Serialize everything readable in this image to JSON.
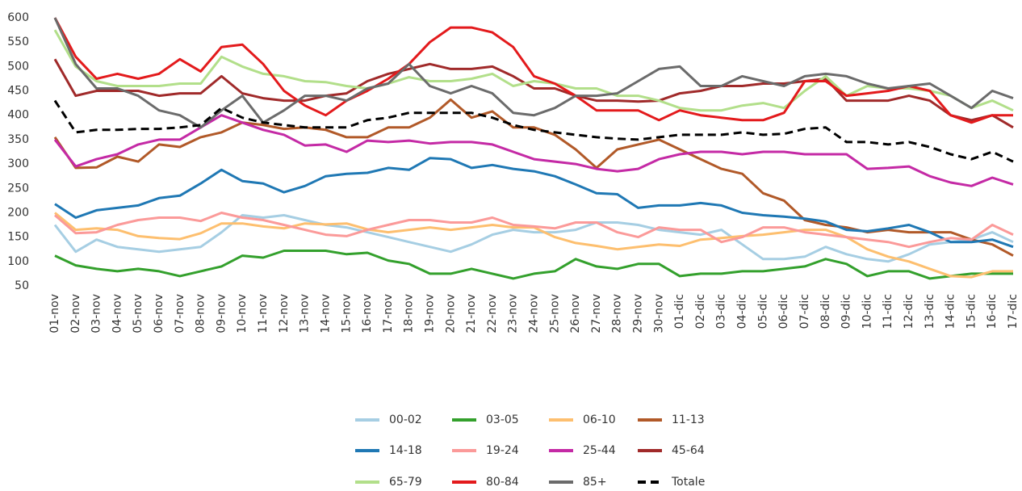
{
  "chart_data": {
    "type": "line",
    "categories": [
      "01-nov",
      "02-nov",
      "03-nov",
      "04-nov",
      "05-nov",
      "06-nov",
      "07-nov",
      "08-nov",
      "09-nov",
      "10-nov",
      "11-nov",
      "12-nov",
      "13-nov",
      "14-nov",
      "15-nov",
      "16-nov",
      "17-nov",
      "18-nov",
      "19-nov",
      "20-nov",
      "21-nov",
      "22-nov",
      "23-nov",
      "24-nov",
      "25-nov",
      "26-nov",
      "27-nov",
      "28-nov",
      "29-nov",
      "30-nov",
      "01-dic",
      "02-dic",
      "03-dic",
      "04-dic",
      "05-dic",
      "06-dic",
      "07-dic",
      "08-dic",
      "09-dic",
      "10-dic",
      "11-dic",
      "12-dic",
      "13-dic",
      "14-dic",
      "15-dic",
      "16-dic",
      "17-dic"
    ],
    "ylim": [
      50,
      600
    ],
    "yticks": [
      50,
      100,
      150,
      200,
      250,
      300,
      350,
      400,
      450,
      500,
      550,
      600
    ],
    "grid": false,
    "series": [
      {
        "name": "00-02",
        "color": "#a6cee3",
        "values": [
          175,
          120,
          145,
          130,
          125,
          120,
          125,
          130,
          160,
          195,
          190,
          195,
          185,
          175,
          170,
          160,
          150,
          140,
          130,
          120,
          135,
          155,
          165,
          160,
          160,
          165,
          180,
          180,
          175,
          165,
          160,
          155,
          165,
          135,
          105,
          105,
          110,
          130,
          115,
          105,
          100,
          115,
          135,
          140,
          145,
          160,
          140
        ]
      },
      {
        "name": "03-05",
        "color": "#33a02c",
        "values": [
          112,
          92,
          85,
          80,
          85,
          80,
          70,
          80,
          90,
          112,
          108,
          122,
          122,
          122,
          115,
          118,
          102,
          95,
          75,
          75,
          85,
          75,
          65,
          75,
          80,
          105,
          90,
          85,
          95,
          95,
          70,
          75,
          75,
          80,
          80,
          85,
          90,
          105,
          95,
          70,
          80,
          80,
          65,
          70,
          75,
          75,
          75
        ]
      },
      {
        "name": "06-10",
        "color": "#fdbf6f",
        "values": [
          200,
          165,
          168,
          165,
          152,
          148,
          146,
          158,
          178,
          178,
          172,
          168,
          178,
          176,
          178,
          166,
          160,
          165,
          170,
          165,
          170,
          175,
          170,
          170,
          150,
          138,
          132,
          125,
          130,
          135,
          132,
          145,
          148,
          152,
          155,
          160,
          165,
          165,
          150,
          125,
          110,
          100,
          85,
          70,
          68,
          80,
          80
        ]
      },
      {
        "name": "11-13",
        "color": "#b15928",
        "values": [
          355,
          292,
          293,
          315,
          305,
          340,
          335,
          355,
          365,
          385,
          380,
          372,
          375,
          370,
          355,
          355,
          375,
          375,
          395,
          432,
          395,
          408,
          375,
          375,
          360,
          330,
          292,
          330,
          340,
          350,
          330,
          310,
          290,
          280,
          240,
          225,
          185,
          175,
          170,
          160,
          165,
          160,
          160,
          160,
          145,
          135,
          112
        ]
      },
      {
        "name": "14-18",
        "color": "#1f78b4",
        "values": [
          218,
          190,
          205,
          210,
          215,
          230,
          235,
          260,
          288,
          265,
          260,
          242,
          255,
          275,
          280,
          282,
          292,
          288,
          312,
          310,
          292,
          298,
          290,
          285,
          275,
          258,
          240,
          238,
          210,
          215,
          215,
          220,
          215,
          200,
          195,
          192,
          188,
          182,
          165,
          162,
          168,
          175,
          160,
          140,
          140,
          145,
          130
        ]
      },
      {
        "name": "19-24",
        "color": "#fb9a99",
        "values": [
          195,
          158,
          160,
          175,
          185,
          190,
          190,
          183,
          200,
          190,
          185,
          175,
          165,
          155,
          152,
          165,
          175,
          185,
          185,
          180,
          180,
          190,
          175,
          172,
          168,
          180,
          180,
          160,
          150,
          170,
          165,
          165,
          140,
          150,
          170,
          170,
          160,
          155,
          150,
          145,
          140,
          130,
          140,
          148,
          145,
          175,
          155
        ]
      },
      {
        "name": "25-44",
        "color": "#c42aa5",
        "values": [
          350,
          295,
          310,
          320,
          340,
          350,
          350,
          375,
          400,
          385,
          370,
          360,
          338,
          340,
          325,
          348,
          345,
          348,
          342,
          345,
          345,
          340,
          325,
          310,
          305,
          300,
          290,
          285,
          290,
          310,
          320,
          325,
          325,
          320,
          325,
          325,
          320,
          320,
          320,
          290,
          292,
          295,
          275,
          262,
          255,
          272,
          258
        ]
      },
      {
        "name": "45-64",
        "color": "#a02a2a",
        "values": [
          515,
          440,
          450,
          450,
          450,
          440,
          445,
          445,
          480,
          445,
          435,
          430,
          430,
          440,
          445,
          470,
          485,
          495,
          505,
          495,
          495,
          500,
          480,
          455,
          455,
          440,
          430,
          430,
          428,
          430,
          445,
          450,
          460,
          460,
          465,
          465,
          470,
          475,
          430,
          430,
          430,
          440,
          430,
          400,
          390,
          400,
          375
        ]
      },
      {
        "name": "65-79",
        "color": "#b2df8a",
        "values": [
          575,
          500,
          470,
          460,
          460,
          460,
          465,
          465,
          520,
          500,
          485,
          480,
          470,
          468,
          460,
          455,
          465,
          478,
          470,
          470,
          475,
          485,
          460,
          470,
          465,
          455,
          455,
          440,
          440,
          430,
          415,
          410,
          410,
          420,
          425,
          415,
          450,
          480,
          440,
          460,
          455,
          455,
          450,
          440,
          415,
          430,
          410
        ]
      },
      {
        "name": "80-84",
        "color": "#e31a1c",
        "values": [
          600,
          520,
          475,
          485,
          475,
          485,
          515,
          490,
          540,
          545,
          505,
          450,
          420,
          400,
          430,
          450,
          475,
          505,
          550,
          580,
          580,
          570,
          540,
          480,
          465,
          440,
          410,
          410,
          410,
          390,
          410,
          400,
          395,
          390,
          390,
          405,
          470,
          470,
          440,
          445,
          450,
          460,
          450,
          400,
          385,
          400,
          400
        ]
      },
      {
        "name": "85+",
        "color": "#6b6b6b",
        "values": [
          600,
          505,
          455,
          455,
          440,
          410,
          400,
          375,
          410,
          440,
          385,
          410,
          440,
          440,
          430,
          455,
          465,
          505,
          460,
          445,
          460,
          445,
          405,
          400,
          415,
          440,
          440,
          445,
          470,
          495,
          500,
          460,
          460,
          480,
          470,
          460,
          480,
          485,
          480,
          465,
          455,
          460,
          465,
          440,
          415,
          450,
          435
        ]
      },
      {
        "name": "Totale",
        "color": "#000000",
        "dashed": true,
        "values": [
          430,
          365,
          370,
          370,
          372,
          372,
          375,
          380,
          415,
          395,
          385,
          380,
          375,
          375,
          375,
          390,
          395,
          405,
          405,
          405,
          405,
          395,
          380,
          370,
          365,
          360,
          355,
          352,
          350,
          355,
          360,
          360,
          360,
          365,
          360,
          362,
          372,
          375,
          345,
          345,
          340,
          345,
          335,
          320,
          310,
          325,
          305
        ]
      }
    ]
  }
}
